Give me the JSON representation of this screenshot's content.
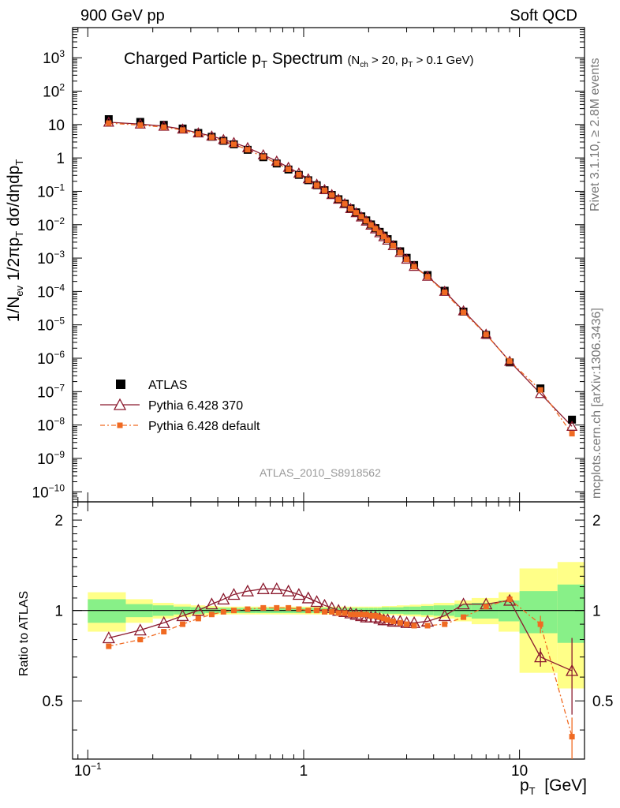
{
  "header": {
    "left": "900 GeV pp",
    "right": "Soft QCD"
  },
  "side_labels": {
    "rivet": "Rivet 3.1.10, ≥ 2.8M events",
    "mcplots": "mcplots.cern.ch [arXiv:1306.3436]"
  },
  "chart_data": {
    "type": "scatter",
    "title": "Charged Particle p",
    "title_sub": "T",
    "title_suffix": " Spectrum",
    "title_cond": {
      "a": "(N",
      "b": "ch",
      "c": " > 20, p",
      "d": "T",
      "e": " > 0.1 GeV)"
    },
    "analysis_label": "ATLAS_2010_S8918562",
    "xlabel": {
      "main": "p",
      "sub": "T",
      "unit": "[GeV]"
    },
    "ylabel": {
      "p1": "1/N",
      "p2": "ev",
      "p3": " 1/2πp",
      "p4": "T",
      "p5": " dσ/dηdp",
      "p6": "T"
    },
    "ratio_ylabel": "Ratio to ATLAS",
    "xscale": "log",
    "xlim": [
      0.085,
      20
    ],
    "yscale": "log",
    "ylim": [
      5e-11,
      8000.0
    ],
    "ratio_ylim": [
      0.32,
      2.3
    ],
    "x_ticks": [
      {
        "v": 0.1,
        "b": "10",
        "e": "−1"
      },
      {
        "v": 1,
        "b": "1",
        "e": ""
      },
      {
        "v": 10,
        "b": "10",
        "e": ""
      }
    ],
    "y_ticks": [
      {
        "v": 1e-10,
        "b": "10",
        "e": "−10"
      },
      {
        "v": 1e-09,
        "b": "10",
        "e": "−9"
      },
      {
        "v": 1e-08,
        "b": "10",
        "e": "−8"
      },
      {
        "v": 1e-07,
        "b": "10",
        "e": "−7"
      },
      {
        "v": 1e-06,
        "b": "10",
        "e": "−6"
      },
      {
        "v": 1e-05,
        "b": "10",
        "e": "−5"
      },
      {
        "v": 0.0001,
        "b": "10",
        "e": "−4"
      },
      {
        "v": 0.001,
        "b": "10",
        "e": "−3"
      },
      {
        "v": 0.01,
        "b": "10",
        "e": "−2"
      },
      {
        "v": 0.1,
        "b": "10",
        "e": "−1"
      },
      {
        "v": 1,
        "b": "1",
        "e": ""
      },
      {
        "v": 10,
        "b": "10",
        "e": ""
      },
      {
        "v": 100,
        "b": "10",
        "e": "2"
      },
      {
        "v": 1000,
        "b": "10",
        "e": "3"
      }
    ],
    "ratio_ticks": [
      {
        "v": 0.5,
        "label": "0.5"
      },
      {
        "v": 1,
        "label": "1"
      },
      {
        "v": 2,
        "label": "2"
      }
    ],
    "x": [
      0.125,
      0.175,
      0.225,
      0.275,
      0.325,
      0.375,
      0.425,
      0.475,
      0.55,
      0.65,
      0.75,
      0.85,
      0.95,
      1.05,
      1.15,
      1.25,
      1.35,
      1.45,
      1.55,
      1.65,
      1.75,
      1.85,
      1.95,
      2.05,
      2.15,
      2.25,
      2.35,
      2.45,
      2.6,
      2.8,
      3.0,
      3.25,
      3.75,
      4.5,
      5.5,
      7.0,
      9.0,
      12.5,
      17.5
    ],
    "x_edges": [
      0.1,
      0.15,
      0.2,
      0.25,
      0.3,
      0.35,
      0.4,
      0.45,
      0.5,
      0.6,
      0.7,
      0.8,
      0.9,
      1.0,
      1.1,
      1.2,
      1.3,
      1.4,
      1.5,
      1.6,
      1.7,
      1.8,
      1.9,
      2.0,
      2.1,
      2.2,
      2.3,
      2.4,
      2.5,
      2.7,
      2.9,
      3.1,
      3.5,
      4.0,
      5.0,
      6.0,
      8.0,
      10.0,
      15.0,
      20.0
    ],
    "series": [
      {
        "name": "ATLAS",
        "values": [
          14.5,
          12.0,
          9.8,
          7.6,
          5.6,
          4.3,
          3.25,
          2.55,
          1.75,
          1.05,
          0.68,
          0.45,
          0.31,
          0.215,
          0.152,
          0.108,
          0.078,
          0.058,
          0.043,
          0.031,
          0.0235,
          0.0178,
          0.0135,
          0.0102,
          0.0079,
          0.0061,
          0.0047,
          0.0037,
          0.00255,
          0.0016,
          0.00102,
          0.00062,
          0.00031,
          0.000105,
          2.5e-05,
          5e-06,
          7.5e-07,
          1.25e-07,
          1.45e-08
        ],
        "band_inner": [
          0.09,
          0.05,
          0.04,
          0.03,
          0.025,
          0.02,
          0.02,
          0.02,
          0.02,
          0.02,
          0.02,
          0.02,
          0.02,
          0.02,
          0.02,
          0.02,
          0.02,
          0.02,
          0.02,
          0.02,
          0.02,
          0.02,
          0.02,
          0.02,
          0.02,
          0.02,
          0.025,
          0.025,
          0.025,
          0.025,
          0.03,
          0.03,
          0.035,
          0.04,
          0.05,
          0.06,
          0.08,
          0.16,
          0.22
        ],
        "band_outer": [
          0.15,
          0.09,
          0.06,
          0.05,
          0.04,
          0.035,
          0.03,
          0.03,
          0.03,
          0.03,
          0.03,
          0.03,
          0.03,
          0.03,
          0.03,
          0.03,
          0.03,
          0.03,
          0.03,
          0.03,
          0.03,
          0.03,
          0.03,
          0.03,
          0.03,
          0.03,
          0.035,
          0.035,
          0.035,
          0.04,
          0.04,
          0.045,
          0.05,
          0.06,
          0.08,
          0.1,
          0.15,
          0.38,
          0.45
        ]
      },
      {
        "name": "Pythia 6.428 370",
        "color": "#8b1a2e",
        "ratios": [
          0.81,
          0.86,
          0.91,
          0.96,
          1.0,
          1.05,
          1.09,
          1.13,
          1.16,
          1.18,
          1.18,
          1.16,
          1.13,
          1.1,
          1.07,
          1.04,
          1.02,
          1.0,
          0.99,
          0.98,
          0.97,
          0.96,
          0.95,
          0.95,
          0.95,
          0.94,
          0.93,
          0.93,
          0.92,
          0.92,
          0.91,
          0.91,
          0.92,
          0.96,
          1.05,
          1.05,
          1.08,
          0.7,
          0.63
        ],
        "ratio_err": [
          0,
          0,
          0,
          0,
          0,
          0,
          0,
          0,
          0,
          0,
          0,
          0,
          0,
          0,
          0,
          0,
          0,
          0,
          0,
          0,
          0,
          0,
          0,
          0,
          0,
          0,
          0,
          0,
          0,
          0,
          0,
          0,
          0,
          0,
          0,
          0,
          0.02,
          0.05,
          0.18
        ]
      },
      {
        "name": "Pythia 6.428 default",
        "color": "#f06a22",
        "ratios": [
          0.76,
          0.8,
          0.85,
          0.9,
          0.94,
          0.97,
          0.99,
          1.0,
          1.01,
          1.02,
          1.02,
          1.02,
          1.01,
          1.0,
          1.0,
          0.99,
          0.99,
          0.98,
          0.98,
          0.97,
          0.97,
          0.97,
          0.97,
          0.96,
          0.96,
          0.95,
          0.94,
          0.93,
          0.92,
          0.91,
          0.9,
          0.89,
          0.89,
          0.9,
          0.95,
          1.03,
          1.09,
          0.9,
          0.38
        ],
        "ratio_err": [
          0,
          0,
          0,
          0,
          0,
          0,
          0,
          0,
          0,
          0,
          0,
          0,
          0,
          0,
          0,
          0,
          0,
          0,
          0,
          0,
          0,
          0,
          0,
          0,
          0,
          0,
          0,
          0,
          0,
          0,
          0,
          0,
          0,
          0,
          0,
          0,
          0.02,
          0.06,
          0.06
        ]
      }
    ],
    "legend": [
      {
        "label": "ATLAS",
        "marker": "square"
      },
      {
        "label": "Pythia 6.428 370",
        "marker": "open-triangle"
      },
      {
        "label": "Pythia 6.428 default",
        "marker": "small-square-dashdot"
      }
    ],
    "band_colors": {
      "inner": "#88f088",
      "outer": "#ffff88"
    }
  }
}
